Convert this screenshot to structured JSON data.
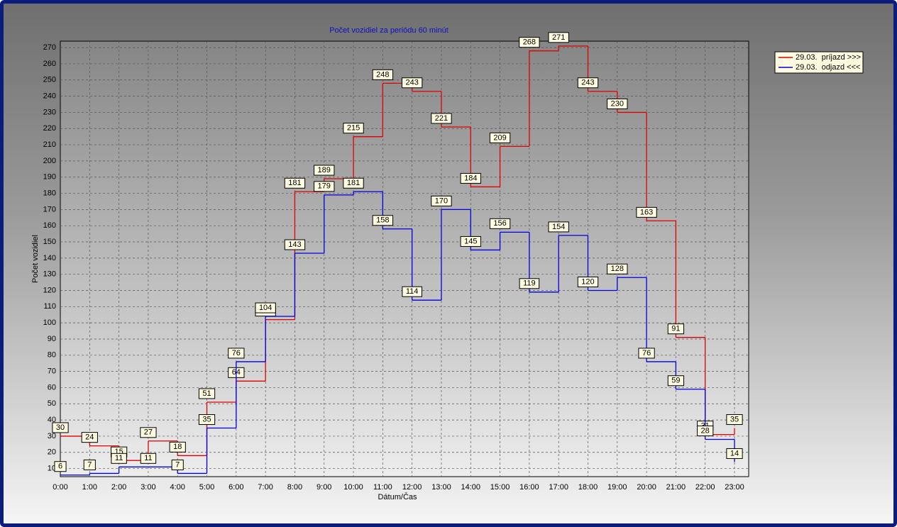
{
  "chart_data": {
    "type": "step-line",
    "title": "Počet vozidiel za periódu 60 minút",
    "x_label": "Dátum/Čas",
    "y_label": "Počet vozidiel",
    "categories": [
      "0:00",
      "1:00",
      "2:00",
      "3:00",
      "4:00",
      "5:00",
      "6:00",
      "7:00",
      "8:00",
      "9:00",
      "10:00",
      "11:00",
      "12:00",
      "13:00",
      "14:00",
      "15:00",
      "16:00",
      "17:00",
      "18:00",
      "19:00",
      "20:00",
      "21:00",
      "22:00",
      "23:00"
    ],
    "series": [
      {
        "name": "29.03.  príjazd >>>",
        "color": "#e00000",
        "values": [
          30,
          24,
          15,
          27,
          18,
          51,
          64,
          102,
          181,
          189,
          215,
          248,
          243,
          221,
          184,
          209,
          268,
          271,
          243,
          230,
          163,
          91,
          31,
          35
        ]
      },
      {
        "name": "29.03.  odjazd <<<",
        "color": "#0000e0",
        "values": [
          6,
          7,
          11,
          11,
          7,
          35,
          76,
          104,
          143,
          179,
          181,
          158,
          114,
          170,
          145,
          156,
          119,
          154,
          120,
          128,
          76,
          59,
          28,
          14
        ]
      }
    ],
    "ylim": [
      5,
      274
    ],
    "yticks": [
      10,
      20,
      30,
      40,
      50,
      60,
      70,
      80,
      90,
      100,
      110,
      120,
      130,
      140,
      150,
      160,
      170,
      180,
      190,
      200,
      210,
      220,
      230,
      240,
      250,
      260,
      270
    ],
    "grid": true,
    "legend": "right"
  }
}
